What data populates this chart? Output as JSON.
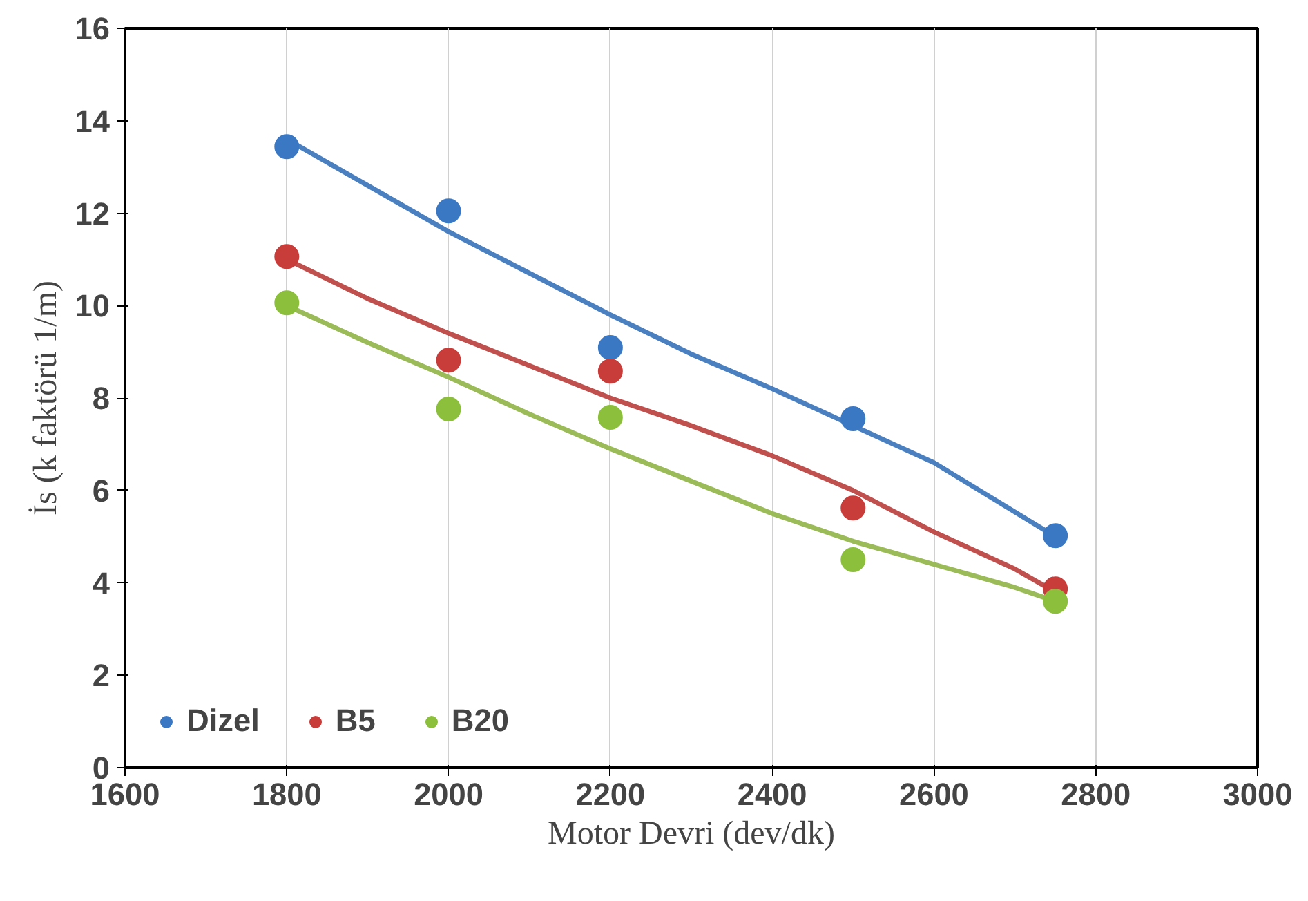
{
  "chart_data": {
    "type": "scatter",
    "xlabel": "Motor Devri (dev/dk)",
    "ylabel": "İs (k faktörü 1/m)",
    "xlim": [
      1600,
      3000
    ],
    "xticks": [
      1600,
      1800,
      2000,
      2200,
      2400,
      2600,
      2800,
      3000
    ],
    "ylim": [
      0,
      16
    ],
    "yticks": [
      0,
      2,
      4,
      6,
      8,
      10,
      12,
      14,
      16
    ],
    "grid": "x",
    "legend": "bottom left",
    "marker": "circle",
    "x": [
      1800,
      2000,
      2200,
      2500,
      2750
    ],
    "series": [
      {
        "name": "Dizel",
        "color": "#3a78c4",
        "values": [
          13.44,
          12.05,
          9.09,
          7.55,
          5.02
        ]
      },
      {
        "name": "B5",
        "color": "#c83c3a",
        "values": [
          11.06,
          8.82,
          8.58,
          5.62,
          3.87
        ]
      },
      {
        "name": "B20",
        "color": "#8cbf3c",
        "values": [
          10.06,
          7.76,
          7.58,
          4.5,
          3.6
        ]
      },
      {
        "type": "line",
        "marker": "none",
        "color": "#4a7fc0",
        "x": [
          1800,
          1900,
          2000,
          2100,
          2200,
          2300,
          2400,
          2500,
          2600,
          2750
        ],
        "values": [
          13.6,
          12.6,
          11.6,
          10.7,
          9.8,
          8.95,
          8.2,
          7.4,
          6.6,
          5.0
        ]
      },
      {
        "type": "line",
        "marker": "none",
        "color": "#c0504d",
        "x": [
          1800,
          1900,
          2000,
          2100,
          2200,
          2300,
          2400,
          2500,
          2600,
          2700,
          2750
        ],
        "values": [
          11.0,
          10.15,
          9.4,
          8.7,
          8.0,
          7.4,
          6.75,
          6.0,
          5.1,
          4.3,
          3.8
        ]
      },
      {
        "type": "line",
        "marker": "none",
        "color": "#9bbb59",
        "x": [
          1800,
          1900,
          2000,
          2100,
          2200,
          2300,
          2400,
          2500,
          2600,
          2700,
          2750
        ],
        "values": [
          10.0,
          9.2,
          8.45,
          7.65,
          6.9,
          6.2,
          5.5,
          4.9,
          4.4,
          3.9,
          3.6
        ]
      }
    ]
  }
}
